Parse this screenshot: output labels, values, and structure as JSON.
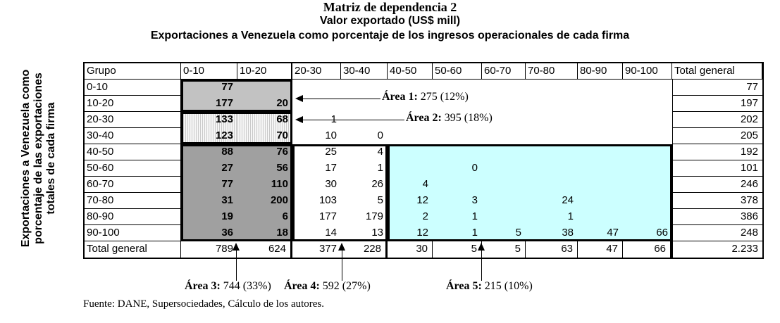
{
  "titles": {
    "line1": "Matriz de dependencia 2",
    "line2": "Valor exportado (US$ mill)",
    "line3": "Exportaciones a Venezuela como porcentaje de los ingresos operacionales de cada firma"
  },
  "y_axis_label": {
    "line1": "Exportaciones a Venezuela como",
    "line2": "porcentaje de las exportaciones",
    "line3": "totales de cada firma"
  },
  "table": {
    "columns": [
      "Grupo",
      "0-10",
      "10-20",
      "20-30",
      "30-40",
      "40-50",
      "50-60",
      "60-70",
      "70-80",
      "80-90",
      "90-100",
      "Total general"
    ],
    "rows": [
      [
        "0-10",
        "77",
        "",
        "",
        "",
        "",
        "",
        "",
        "",
        "",
        "",
        "77"
      ],
      [
        "10-20",
        "177",
        "20",
        "",
        "",
        "",
        "",
        "",
        "",
        "",
        "",
        "197"
      ],
      [
        "20-30",
        "133",
        "68",
        "1",
        "",
        "",
        "",
        "",
        "",
        "",
        "",
        "202"
      ],
      [
        "30-40",
        "123",
        "70",
        "10",
        "0",
        "",
        "",
        "",
        "",
        "",
        "",
        "205"
      ],
      [
        "40-50",
        "88",
        "76",
        "25",
        "4",
        "",
        "",
        "",
        "",
        "",
        "",
        "192"
      ],
      [
        "50-60",
        "27",
        "56",
        "17",
        "1",
        "",
        "0",
        "",
        "",
        "",
        "",
        "101"
      ],
      [
        "60-70",
        "77",
        "110",
        "30",
        "26",
        "4",
        "",
        "",
        "",
        "",
        "",
        "246"
      ],
      [
        "70-80",
        "31",
        "200",
        "103",
        "5",
        "12",
        "3",
        "",
        "24",
        "",
        "",
        "378"
      ],
      [
        "80-90",
        "19",
        "6",
        "177",
        "179",
        "2",
        "1",
        "",
        "1",
        "",
        "",
        "386"
      ],
      [
        "90-100",
        "36",
        "18",
        "14",
        "13",
        "12",
        "1",
        "5",
        "38",
        "47",
        "66",
        "248"
      ]
    ],
    "total_row": [
      "Total general",
      "789",
      "624",
      "377",
      "228",
      "30",
      "5",
      "5",
      "63",
      "47",
      "66",
      "2.233"
    ]
  },
  "annotations": {
    "area1": {
      "label": "Área 1:",
      "value": "275 (12%)"
    },
    "area2": {
      "label": "Área 2:",
      "value": "395 (18%)"
    },
    "area3": {
      "label": "Área 3:",
      "value": "744 (33%)"
    },
    "area4": {
      "label": "Área 4:",
      "value": "592 (27%)"
    },
    "area5": {
      "label": "Área 5:",
      "value": "215 (10%)"
    }
  },
  "colors": {
    "area1_fill": "#c2c2c2",
    "area2_fill": "hatched-vertical",
    "area3_fill": "#a0a0a0",
    "area5_fill": "#ccffff",
    "border": "#000000"
  },
  "source": "Fuente: DANE, Supersociedades, Cálculo de los autores."
}
